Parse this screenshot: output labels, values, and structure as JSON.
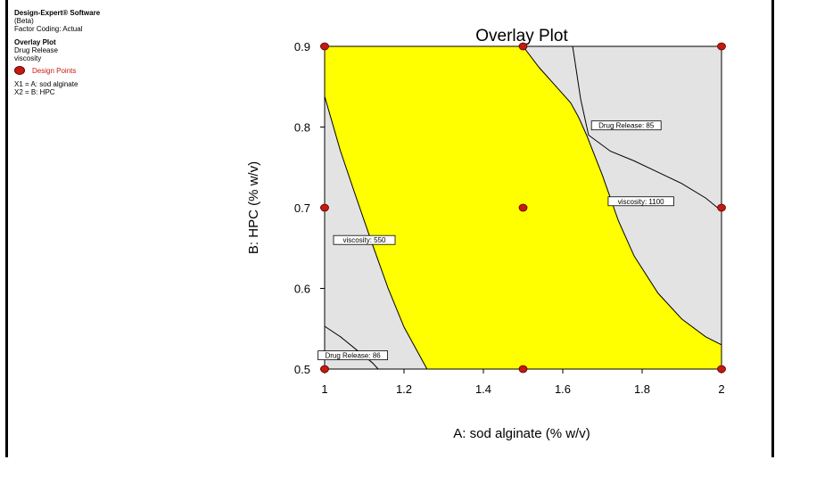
{
  "sidebar": {
    "software": "Design-Expert® Software",
    "version": "(Beta)",
    "coding": "Factor Coding: Actual",
    "plot_name": "Overlay Plot",
    "responses": [
      "Drug Release",
      "viscosity"
    ],
    "legend_label": "Design Points",
    "factor_x1": "X1 = A: sod alginate",
    "factor_x2": "X2 = B: HPC"
  },
  "chart_data": {
    "type": "overlay contour",
    "title": "Overlay Plot",
    "xlabel": "A: sod alginate (% w/v)",
    "ylabel": "B: HPC (% w/v)",
    "xlim": [
      1,
      2
    ],
    "ylim": [
      0.5,
      0.9
    ],
    "xticks": [
      "1",
      "1.2",
      "1.4",
      "1.6",
      "1.8",
      "2"
    ],
    "yticks": [
      "0.5",
      "0.6",
      "0.7",
      "0.8",
      "0.9"
    ],
    "colors": {
      "feasible": "#ffff00",
      "infeasible": "#e3e3e3",
      "design_point": "#c41a0f"
    },
    "design_points": [
      {
        "x": 1,
        "y": 0.9
      },
      {
        "x": 1.5,
        "y": 0.9
      },
      {
        "x": 2,
        "y": 0.9
      },
      {
        "x": 1,
        "y": 0.7
      },
      {
        "x": 1.5,
        "y": 0.7
      },
      {
        "x": 2,
        "y": 0.7
      },
      {
        "x": 1,
        "y": 0.5
      },
      {
        "x": 1.5,
        "y": 0.5
      },
      {
        "x": 2,
        "y": 0.5
      }
    ],
    "contours": [
      {
        "label": "viscosity: 550",
        "points": [
          [
            1,
            0.838
          ],
          [
            1.04,
            0.77
          ],
          [
            1.08,
            0.712
          ],
          [
            1.12,
            0.655
          ],
          [
            1.16,
            0.6
          ],
          [
            1.2,
            0.552
          ],
          [
            1.258,
            0.5
          ]
        ]
      },
      {
        "label": "viscosity: 1100",
        "points": [
          [
            1.5,
            0.9
          ],
          [
            1.54,
            0.874
          ],
          [
            1.58,
            0.852
          ],
          [
            1.62,
            0.83
          ],
          [
            1.64,
            0.812
          ],
          [
            1.66,
            0.79
          ],
          [
            1.7,
            0.74
          ],
          [
            1.74,
            0.684
          ],
          [
            1.78,
            0.64
          ],
          [
            1.84,
            0.594
          ],
          [
            1.9,
            0.562
          ],
          [
            1.96,
            0.54
          ],
          [
            2,
            0.53
          ]
        ]
      },
      {
        "label": "Drug Release: 85",
        "points": [
          [
            1.625,
            0.9
          ],
          [
            1.645,
            0.835
          ],
          [
            1.665,
            0.79
          ],
          [
            1.72,
            0.77
          ],
          [
            1.78,
            0.758
          ],
          [
            1.84,
            0.744
          ],
          [
            1.9,
            0.73
          ],
          [
            1.96,
            0.712
          ],
          [
            2,
            0.696
          ]
        ]
      },
      {
        "label": "Drug Release: 86",
        "points": [
          [
            1,
            0.553
          ],
          [
            1.04,
            0.54
          ],
          [
            1.08,
            0.524
          ],
          [
            1.12,
            0.508
          ],
          [
            1.135,
            0.5
          ]
        ]
      }
    ]
  }
}
